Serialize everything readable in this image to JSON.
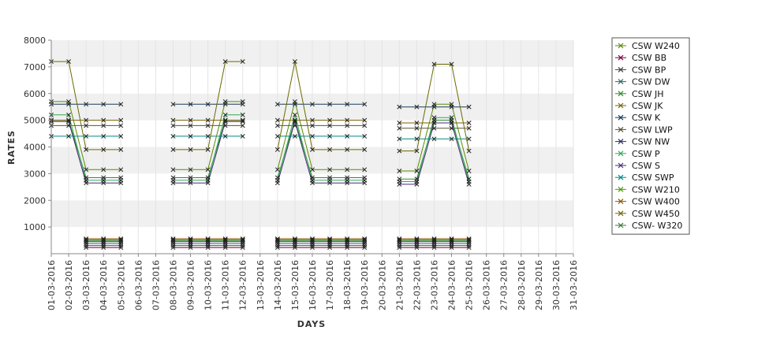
{
  "chart_data": {
    "type": "line",
    "title": "",
    "xlabel": "DAYS",
    "ylabel": "RATES",
    "ylim": [
      0,
      8000
    ],
    "yticks": [
      1000,
      2000,
      3000,
      4000,
      5000,
      6000,
      7000,
      8000
    ],
    "grid": "alternating horizontal bands",
    "legend_position": "right",
    "categories": [
      "01-03-2016",
      "02-03-2016",
      "03-03-2016",
      "04-03-2016",
      "05-03-2016",
      "06-03-2016",
      "07-03-2016",
      "08-03-2016",
      "09-03-2016",
      "10-03-2016",
      "11-03-2016",
      "12-03-2016",
      "13-03-2016",
      "14-03-2016",
      "15-03-2016",
      "16-03-2016",
      "17-03-2016",
      "18-03-2016",
      "19-03-2016",
      "20-03-2016",
      "21-03-2016",
      "22-03-2016",
      "23-03-2016",
      "24-03-2016",
      "25-03-2016",
      "26-03-2016",
      "27-03-2016",
      "28-03-2016",
      "29-03-2016",
      "30-03-2016",
      "31-03-2016"
    ],
    "series": [
      {
        "name": "CSW  W240",
        "color": "#5a8a00",
        "values": [
          5700,
          5700,
          3150,
          3150,
          3150,
          null,
          null,
          3150,
          3150,
          3150,
          5700,
          5700,
          null,
          3150,
          5700,
          3150,
          3150,
          3150,
          3150,
          null,
          3100,
          3100,
          5600,
          5600,
          3100,
          null,
          null,
          null,
          null,
          null,
          null
        ]
      },
      {
        "name": "CSW BB",
        "color": "#800040",
        "values": [
          null,
          null,
          230,
          230,
          230,
          null,
          null,
          230,
          230,
          230,
          230,
          230,
          null,
          230,
          230,
          230,
          230,
          230,
          230,
          null,
          230,
          230,
          230,
          230,
          230,
          null,
          null,
          null,
          null,
          null,
          null
        ]
      },
      {
        "name": "CSW BP",
        "color": "#404040",
        "values": [
          null,
          null,
          300,
          300,
          300,
          null,
          null,
          300,
          300,
          300,
          300,
          300,
          null,
          300,
          300,
          300,
          300,
          300,
          300,
          null,
          300,
          300,
          300,
          300,
          300,
          null,
          null,
          null,
          null,
          null,
          null
        ]
      },
      {
        "name": "CSW DW",
        "color": "#336666",
        "values": [
          null,
          null,
          380,
          380,
          380,
          null,
          null,
          380,
          380,
          380,
          380,
          380,
          null,
          380,
          380,
          380,
          380,
          380,
          380,
          null,
          380,
          380,
          380,
          380,
          380,
          null,
          null,
          null,
          null,
          null,
          null
        ]
      },
      {
        "name": "CSW JH",
        "color": "#2e8b2e",
        "values": [
          5000,
          5000,
          2850,
          2850,
          2850,
          null,
          null,
          2850,
          2850,
          2850,
          5000,
          5000,
          null,
          2850,
          5000,
          2850,
          2850,
          2850,
          2850,
          null,
          2800,
          2800,
          5000,
          5000,
          2800,
          null,
          null,
          null,
          null,
          null,
          null
        ]
      },
      {
        "name": "CSW JK",
        "color": "#7a6000",
        "values": [
          5000,
          5000,
          5000,
          5000,
          5000,
          null,
          null,
          5000,
          5000,
          5000,
          5000,
          5000,
          null,
          5000,
          5000,
          5000,
          5000,
          5000,
          5000,
          null,
          4900,
          4900,
          4900,
          4900,
          4900,
          null,
          null,
          null,
          null,
          null,
          null
        ]
      },
      {
        "name": "CSW K",
        "color": "#1a3a5c",
        "values": [
          5600,
          5600,
          5600,
          5600,
          5600,
          null,
          null,
          5600,
          5600,
          5600,
          5600,
          5600,
          null,
          5600,
          5600,
          5600,
          5600,
          5600,
          5600,
          null,
          5500,
          5500,
          5500,
          5500,
          5500,
          null,
          null,
          null,
          null,
          null,
          null
        ]
      },
      {
        "name": "CSW LWP",
        "color": "#555533",
        "values": [
          4800,
          4800,
          4800,
          4800,
          4800,
          null,
          null,
          4800,
          4800,
          4800,
          4800,
          4800,
          null,
          4800,
          4800,
          4800,
          4800,
          4800,
          4800,
          null,
          4700,
          4700,
          4700,
          4700,
          4700,
          null,
          null,
          null,
          null,
          null,
          null
        ]
      },
      {
        "name": "CSW NW",
        "color": "#2b2b66",
        "values": [
          null,
          null,
          450,
          450,
          450,
          null,
          null,
          450,
          450,
          450,
          450,
          450,
          null,
          450,
          450,
          450,
          450,
          450,
          450,
          null,
          450,
          450,
          450,
          450,
          450,
          null,
          null,
          null,
          null,
          null,
          null
        ]
      },
      {
        "name": "CSW P",
        "color": "#33aa55",
        "values": [
          5200,
          5200,
          2750,
          2750,
          2750,
          null,
          null,
          2750,
          2750,
          2750,
          5200,
          5200,
          null,
          2750,
          5200,
          2750,
          2750,
          2750,
          2750,
          null,
          2700,
          2700,
          5100,
          5100,
          2700,
          null,
          null,
          null,
          null,
          null,
          null
        ]
      },
      {
        "name": "CSW S",
        "color": "#4a2a7a",
        "values": [
          4950,
          4950,
          2650,
          2650,
          2650,
          null,
          null,
          2650,
          2650,
          2650,
          4950,
          4950,
          null,
          2650,
          4950,
          2650,
          2650,
          2650,
          2650,
          null,
          2600,
          2600,
          4900,
          4900,
          2600,
          null,
          null,
          null,
          null,
          null,
          null
        ]
      },
      {
        "name": "CSW SWP",
        "color": "#008888",
        "values": [
          4400,
          4400,
          4400,
          4400,
          4400,
          null,
          null,
          4400,
          4400,
          4400,
          4400,
          4400,
          null,
          4400,
          4400,
          4400,
          4400,
          4400,
          4400,
          null,
          4300,
          4300,
          4300,
          4300,
          4300,
          null,
          null,
          null,
          null,
          null,
          null
        ]
      },
      {
        "name": "CSW W210",
        "color": "#4aa000",
        "values": [
          null,
          null,
          520,
          520,
          520,
          null,
          null,
          520,
          520,
          520,
          520,
          520,
          null,
          520,
          520,
          520,
          520,
          520,
          520,
          null,
          520,
          520,
          520,
          520,
          520,
          null,
          null,
          null,
          null,
          null,
          null
        ]
      },
      {
        "name": "CSW W400",
        "color": "#8a5a00",
        "values": [
          null,
          null,
          560,
          560,
          560,
          null,
          null,
          560,
          560,
          560,
          560,
          560,
          null,
          560,
          560,
          560,
          560,
          560,
          560,
          null,
          560,
          560,
          560,
          560,
          560,
          null,
          null,
          null,
          null,
          null,
          null
        ]
      },
      {
        "name": "CSW W450",
        "color": "#6a6a00",
        "values": [
          7200,
          7200,
          3900,
          3900,
          3900,
          null,
          null,
          3900,
          3900,
          3900,
          7200,
          7200,
          null,
          3900,
          7200,
          3900,
          3900,
          3900,
          3900,
          null,
          3850,
          3850,
          7100,
          7100,
          3850,
          null,
          null,
          null,
          null,
          null,
          null
        ]
      },
      {
        "name": "CSW- W320",
        "color": "#3a7a3a",
        "values": [
          null,
          null,
          500,
          500,
          500,
          null,
          null,
          500,
          500,
          500,
          500,
          500,
          null,
          500,
          500,
          500,
          500,
          500,
          500,
          null,
          500,
          500,
          500,
          500,
          500,
          null,
          null,
          null,
          null,
          null,
          null
        ]
      }
    ]
  }
}
